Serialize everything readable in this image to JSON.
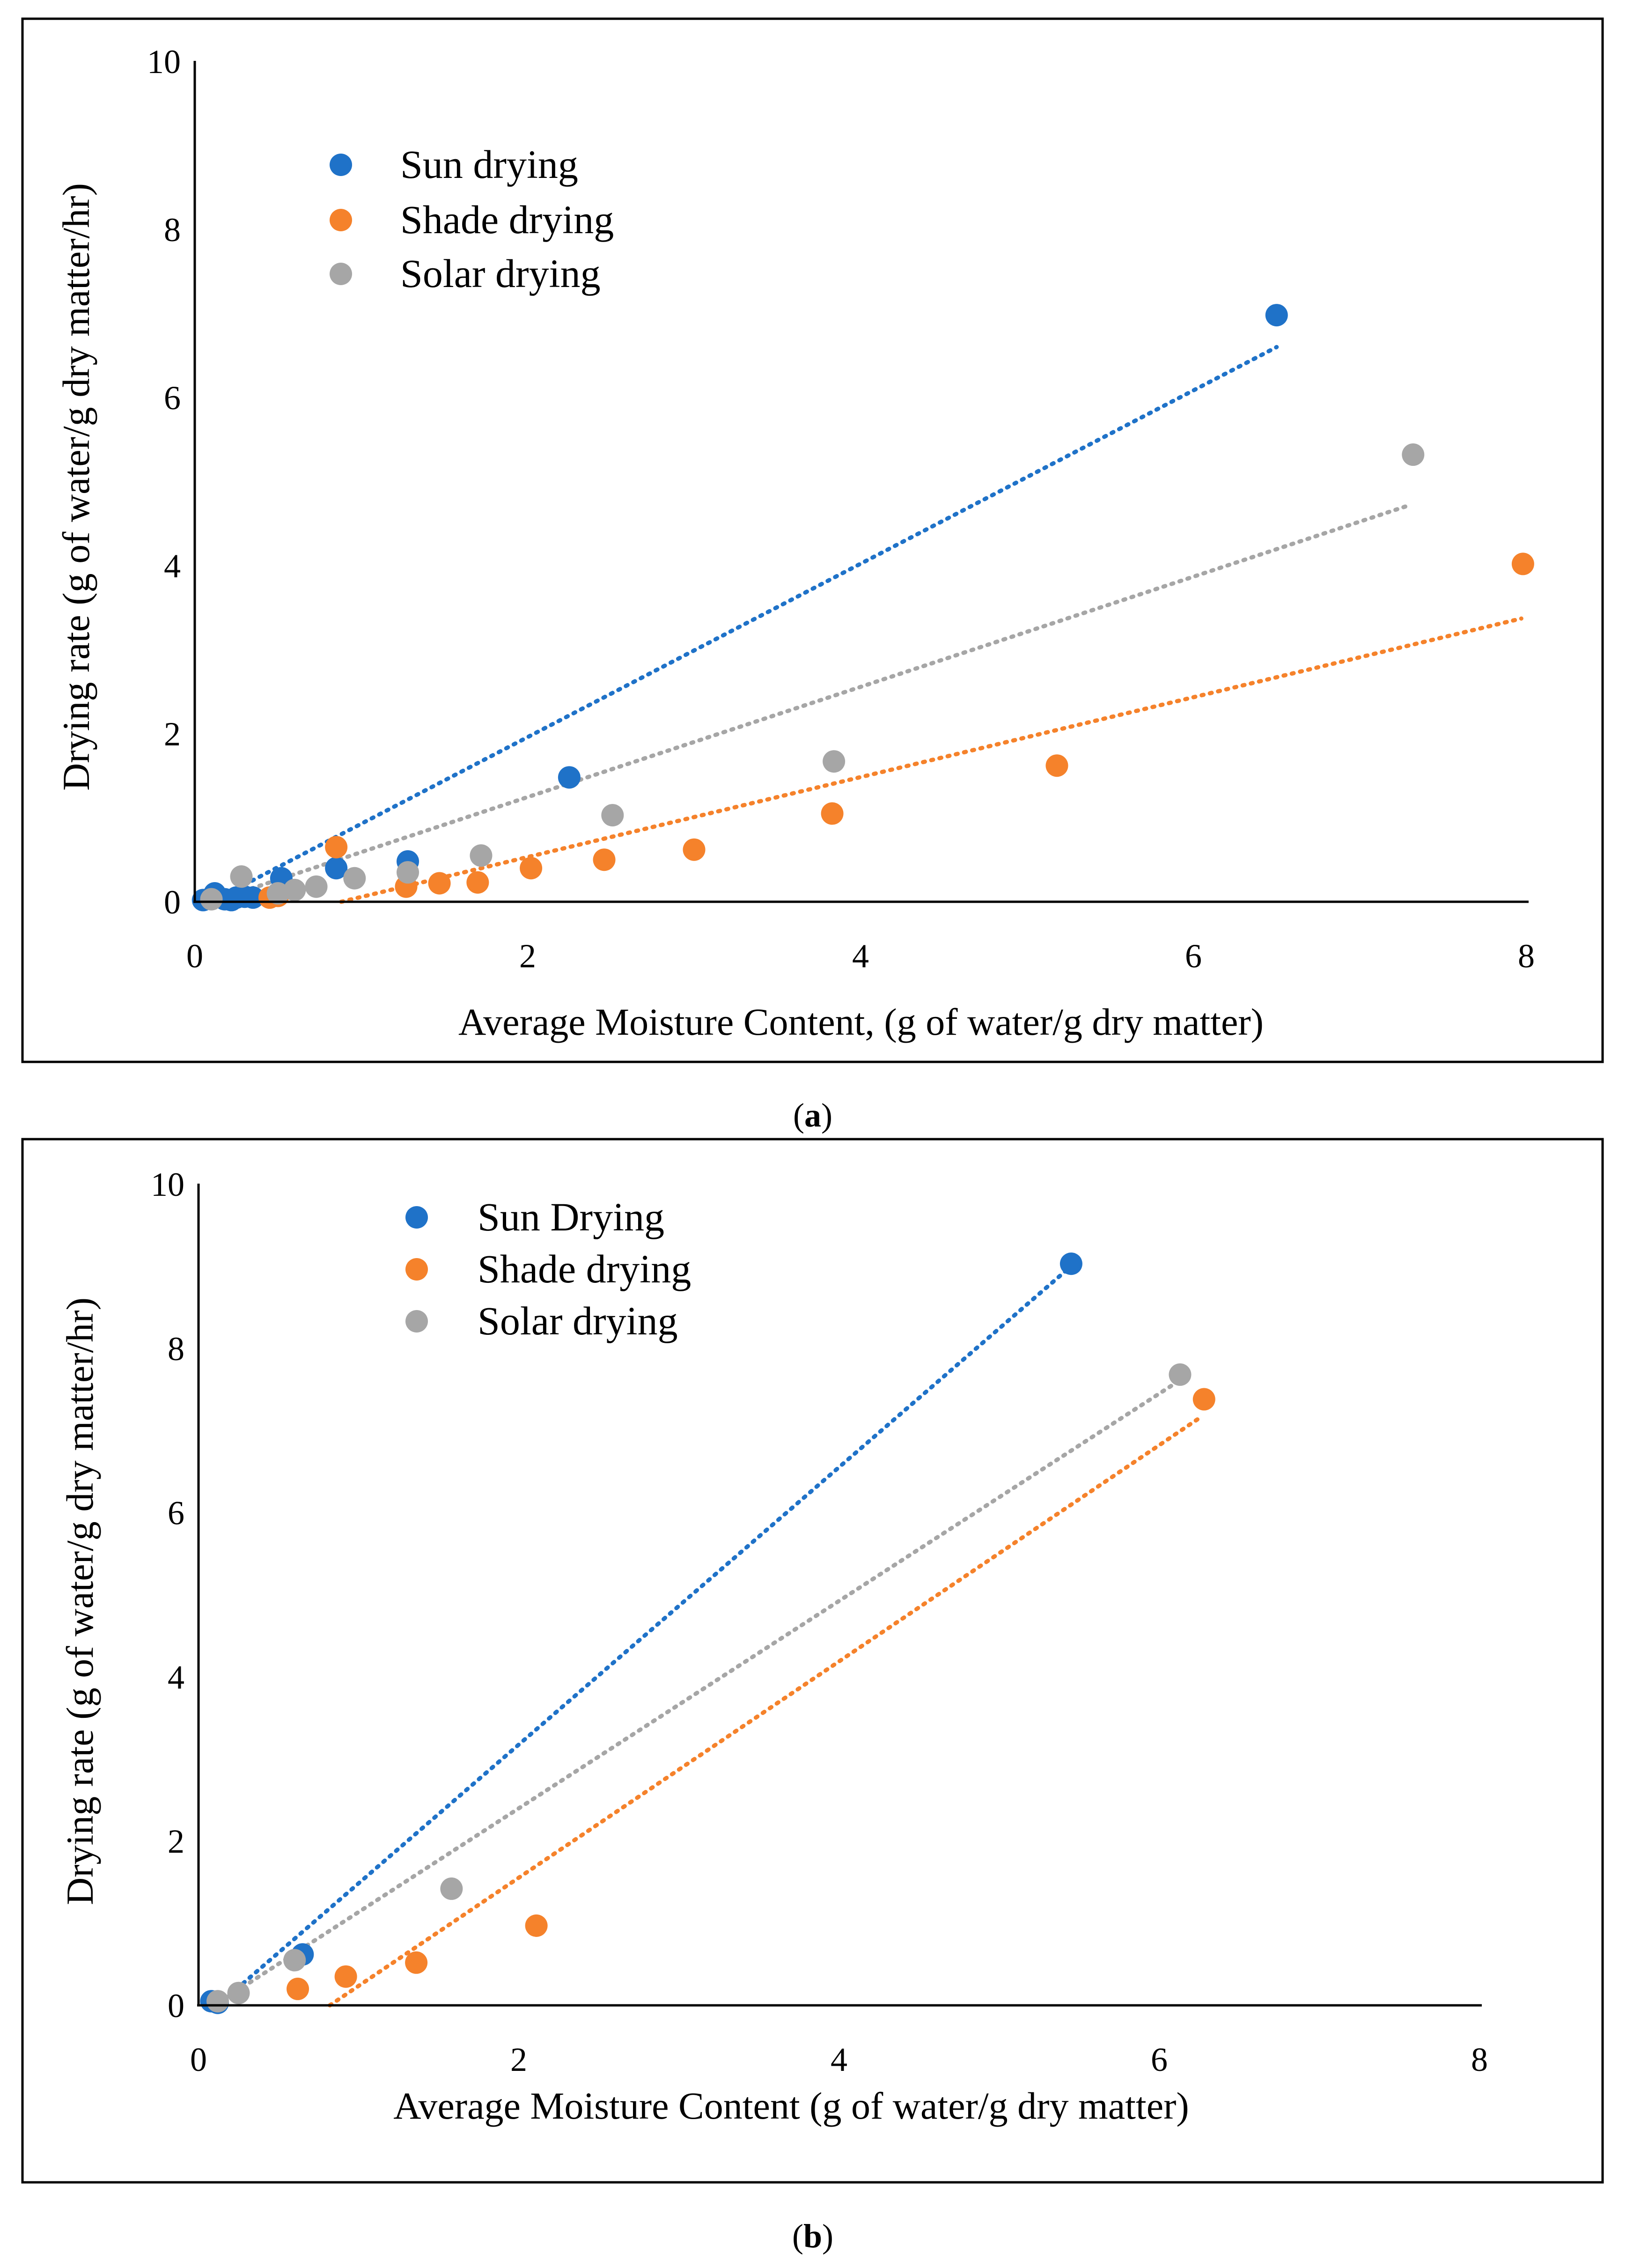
{
  "colors": {
    "sun": "#1f72c8",
    "shade": "#f5822b",
    "solar": "#a6a6a6"
  },
  "chart_data": [
    {
      "id": "a",
      "type": "scatter",
      "caption_letter": "a",
      "xlabel": "Average Moisture Content, (g of water/g dry matter)",
      "ylabel": "Drying rate (g of water/g dry matter/hr)",
      "xlim": [
        0,
        8
      ],
      "ylim": [
        0,
        10
      ],
      "x_ticks": [
        "0",
        "2",
        "4",
        "6",
        "8"
      ],
      "y_ticks": [
        "0",
        "2",
        "4",
        "6",
        "8",
        "10"
      ],
      "legend_position": "top-left",
      "series": [
        {
          "name": "Sun drying",
          "color_key": "sun",
          "points": [
            [
              0.05,
              0.02
            ],
            [
              0.12,
              0.1
            ],
            [
              0.18,
              0.03
            ],
            [
              0.22,
              0.02
            ],
            [
              0.25,
              0.05
            ],
            [
              0.3,
              0.06
            ],
            [
              0.35,
              0.05
            ],
            [
              0.52,
              0.28
            ],
            [
              0.85,
              0.4
            ],
            [
              1.28,
              0.48
            ],
            [
              2.25,
              1.48
            ],
            [
              6.5,
              6.98
            ]
          ],
          "trendline": [
            [
              0.12,
              0.02
            ],
            [
              6.5,
              6.6
            ]
          ]
        },
        {
          "name": "Shade drying",
          "color_key": "shade",
          "points": [
            [
              0.45,
              0.05
            ],
            [
              0.5,
              0.07
            ],
            [
              0.85,
              0.65
            ],
            [
              1.27,
              0.18
            ],
            [
              1.47,
              0.22
            ],
            [
              1.7,
              0.23
            ],
            [
              2.02,
              0.4
            ],
            [
              2.46,
              0.5
            ],
            [
              3.0,
              0.62
            ],
            [
              3.83,
              1.05
            ],
            [
              5.18,
              1.62
            ],
            [
              7.98,
              4.02
            ]
          ],
          "trendline": [
            [
              0.88,
              0.0
            ],
            [
              7.97,
              3.37
            ]
          ]
        },
        {
          "name": "Solar drying",
          "color_key": "solar",
          "points": [
            [
              0.1,
              0.03
            ],
            [
              0.28,
              0.3
            ],
            [
              0.5,
              0.1
            ],
            [
              0.6,
              0.14
            ],
            [
              0.73,
              0.18
            ],
            [
              0.96,
              0.28
            ],
            [
              1.28,
              0.35
            ],
            [
              1.72,
              0.55
            ],
            [
              2.51,
              1.03
            ],
            [
              3.84,
              1.67
            ],
            [
              7.32,
              5.32
            ]
          ],
          "trendline": [
            [
              0.1,
              0.0
            ],
            [
              7.3,
              4.72
            ]
          ]
        }
      ]
    },
    {
      "id": "b",
      "type": "scatter",
      "caption_letter": "b",
      "xlabel": "Average Moisture Content (g of water/g dry matter)",
      "ylabel": "Drying rate (g of water/g dry matter/hr)",
      "xlim": [
        0,
        8
      ],
      "ylim": [
        0,
        10
      ],
      "x_ticks": [
        "0",
        "2",
        "4",
        "6",
        "8"
      ],
      "y_ticks": [
        "0",
        "2",
        "4",
        "6",
        "8",
        "10"
      ],
      "legend_position": "top-left",
      "series": [
        {
          "name": "Sun Drying",
          "color_key": "sun",
          "points": [
            [
              0.08,
              0.05
            ],
            [
              0.12,
              0.03
            ],
            [
              0.65,
              0.62
            ],
            [
              5.45,
              9.03
            ]
          ],
          "trendline": [
            [
              0.12,
              0.0
            ],
            [
              5.42,
              8.95
            ]
          ]
        },
        {
          "name": "Shade drying",
          "color_key": "shade",
          "points": [
            [
              0.62,
              0.2
            ],
            [
              0.92,
              0.35
            ],
            [
              1.36,
              0.52
            ],
            [
              2.11,
              0.97
            ],
            [
              6.28,
              7.38
            ]
          ],
          "trendline": [
            [
              0.82,
              0.0
            ],
            [
              6.25,
              7.15
            ]
          ]
        },
        {
          "name": "Solar drying",
          "color_key": "solar",
          "points": [
            [
              0.12,
              0.05
            ],
            [
              0.25,
              0.15
            ],
            [
              0.6,
              0.55
            ],
            [
              1.58,
              1.42
            ],
            [
              6.13,
              7.68
            ]
          ],
          "trendline": [
            [
              0.1,
              0.0
            ],
            [
              6.12,
              7.6
            ]
          ]
        }
      ]
    }
  ]
}
